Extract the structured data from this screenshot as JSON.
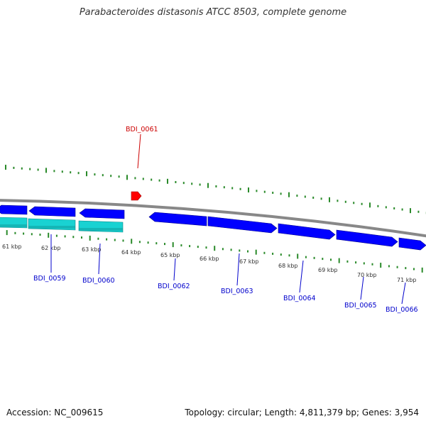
{
  "title": "Parabacteroides distasonis ATCC 8503, complete genome",
  "footer": {
    "accession": "Accession: NC_009615",
    "summary": "Topology: circular; Length: 4,811,379 bp; Genes: 3,954"
  },
  "colors": {
    "backbone": "#888888",
    "cds_forward": "#0000ff",
    "cds_reverse": "#0000ff",
    "rna": "#19d2d2",
    "highlight_gene": "#ff0000",
    "tick": "#2a8a2a",
    "label_blue": "#0000cc",
    "label_red": "#cc0000",
    "kbp_text": "#333333"
  },
  "kbp_ticks": [
    "61 kbp",
    "62 kbp",
    "63 kbp",
    "64 kbp",
    "65 kbp",
    "66 kbp",
    "67 kbp",
    "68 kbp",
    "69 kbp",
    "70 kbp",
    "71 kbp"
  ],
  "genes": [
    {
      "label": "BDI_0059",
      "color": "blue"
    },
    {
      "label": "BDI_0060",
      "color": "blue"
    },
    {
      "label": "BDI_0061",
      "color": "red"
    },
    {
      "label": "BDI_0062",
      "color": "blue"
    },
    {
      "label": "BDI_0063",
      "color": "blue"
    },
    {
      "label": "BDI_0064",
      "color": "blue"
    },
    {
      "label": "BDI_0065",
      "color": "blue"
    },
    {
      "label": "BDI_0066",
      "color": "blue"
    }
  ]
}
